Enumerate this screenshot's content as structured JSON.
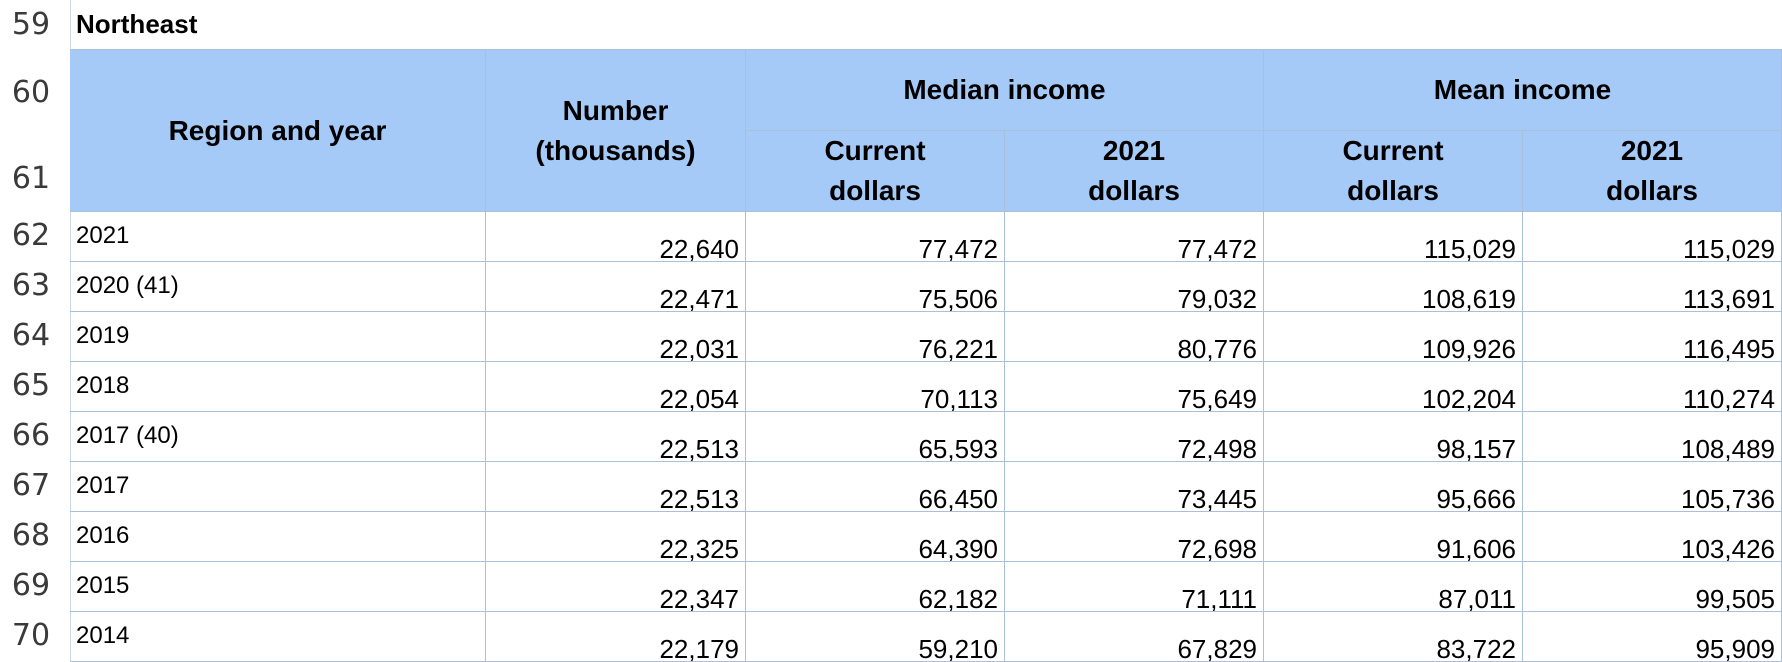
{
  "row_numbers": [
    "59",
    "60",
    "61",
    "62",
    "63",
    "64",
    "65",
    "66",
    "67",
    "68",
    "69",
    "70"
  ],
  "region_title": "Northeast",
  "headers": {
    "region_and_year": "Region and year",
    "number_line1": "Number",
    "number_line2": "(thousands)",
    "median_income": "Median income",
    "mean_income": "Mean income",
    "current_line1": "Current",
    "current_line2": "dollars",
    "dollars2021_line1": "2021",
    "dollars2021_line2": "dollars"
  },
  "rows": [
    {
      "year": "2021",
      "number": "22,640",
      "median_current": "77,472",
      "median_2021": "77,472",
      "mean_current": "115,029",
      "mean_2021": "115,029"
    },
    {
      "year": "2020 (41)",
      "number": "22,471",
      "median_current": "75,506",
      "median_2021": "79,032",
      "mean_current": "108,619",
      "mean_2021": "113,691"
    },
    {
      "year": "2019",
      "number": "22,031",
      "median_current": "76,221",
      "median_2021": "80,776",
      "mean_current": "109,926",
      "mean_2021": "116,495"
    },
    {
      "year": "2018",
      "number": "22,054",
      "median_current": "70,113",
      "median_2021": "75,649",
      "mean_current": "102,204",
      "mean_2021": "110,274"
    },
    {
      "year": "2017 (40)",
      "number": "22,513",
      "median_current": "65,593",
      "median_2021": "72,498",
      "mean_current": "98,157",
      "mean_2021": "108,489"
    },
    {
      "year": "2017",
      "number": "22,513",
      "median_current": "66,450",
      "median_2021": "73,445",
      "mean_current": "95,666",
      "mean_2021": "105,736"
    },
    {
      "year": "2016",
      "number": "22,325",
      "median_current": "64,390",
      "median_2021": "72,698",
      "mean_current": "91,606",
      "mean_2021": "103,426"
    },
    {
      "year": "2015",
      "number": "22,347",
      "median_current": "62,182",
      "median_2021": "71,111",
      "mean_current": "87,011",
      "mean_2021": "99,505"
    },
    {
      "year": "2014",
      "number": "22,179",
      "median_current": "59,210",
      "median_2021": "67,829",
      "mean_current": "83,722",
      "mean_2021": "95,909"
    }
  ],
  "colors": {
    "header_fill": "#a5caf8",
    "grid_line": "#a9c0da"
  }
}
